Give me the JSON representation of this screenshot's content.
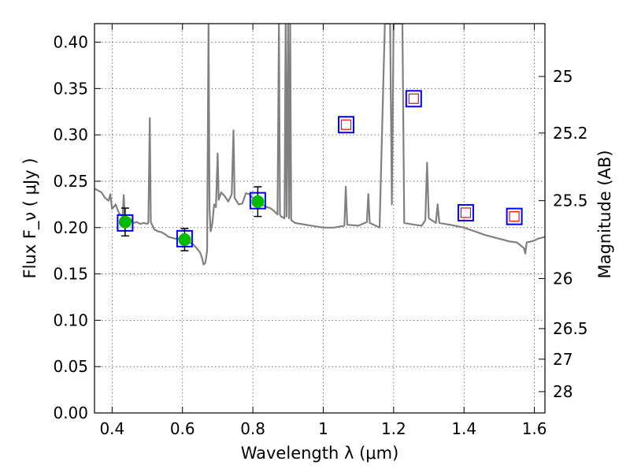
{
  "chart_data": {
    "type": "scatter",
    "title": "",
    "xlabel": "Wavelength  λ (μm)",
    "ylabel": "Flux  F_ν  ( μJy )",
    "ylabel_right": "Magnitude (AB)",
    "xlim": [
      0.35,
      1.63
    ],
    "ylim": [
      0.0,
      0.42
    ],
    "grid": true,
    "legend": "none",
    "x_ticks": [
      0.4,
      0.6,
      0.8,
      1.0,
      1.2,
      1.4,
      1.6
    ],
    "x_tick_labels": [
      "0.4",
      "0.6",
      "0.8",
      "1",
      "1.2",
      "1.4",
      "1.6"
    ],
    "y_ticks": [
      0.0,
      0.05,
      0.1,
      0.15,
      0.2,
      0.25,
      0.3,
      0.35,
      0.4
    ],
    "y_tick_labels": [
      "0.00",
      "0.05",
      "0.10",
      "0.15",
      "0.20",
      "0.25",
      "0.30",
      "0.35",
      "0.40"
    ],
    "right_ticks": [
      {
        "label": "25",
        "flux": 0.363
      },
      {
        "label": "25.2",
        "flux": 0.302
      },
      {
        "label": "25.5",
        "flux": 0.229
      },
      {
        "label": "26",
        "flux": 0.145
      },
      {
        "label": "26.5",
        "flux": 0.091
      },
      {
        "label": "27",
        "flux": 0.058
      },
      {
        "label": "28",
        "flux": 0.023
      }
    ],
    "colors": {
      "spectrum": "#808080",
      "observed_marker": "#00bb00",
      "model_box": "#0000ff",
      "upper_marker": "#ff0000",
      "error_bar": "#000000",
      "grid": "#555555"
    },
    "series": [
      {
        "type": "line",
        "values": [
          [
            0.35,
            0.242
          ],
          [
            0.36,
            0.24
          ],
          [
            0.37,
            0.238
          ],
          [
            0.38,
            0.232
          ],
          [
            0.39,
            0.229
          ],
          [
            0.395,
            0.236
          ],
          [
            0.4,
            0.22
          ],
          [
            0.41,
            0.225
          ],
          [
            0.42,
            0.215
          ],
          [
            0.43,
            0.212
          ],
          [
            0.433,
            0.235
          ],
          [
            0.436,
            0.212
          ],
          [
            0.44,
            0.208
          ],
          [
            0.45,
            0.21
          ],
          [
            0.46,
            0.205
          ],
          [
            0.47,
            0.206
          ],
          [
            0.48,
            0.204
          ],
          [
            0.49,
            0.205
          ],
          [
            0.5,
            0.204
          ],
          [
            0.503,
            0.205
          ],
          [
            0.507,
            0.318
          ],
          [
            0.51,
            0.206
          ],
          [
            0.52,
            0.198
          ],
          [
            0.53,
            0.196
          ],
          [
            0.54,
            0.195
          ],
          [
            0.55,
            0.193
          ],
          [
            0.56,
            0.19
          ],
          [
            0.57,
            0.189
          ],
          [
            0.58,
            0.188
          ],
          [
            0.59,
            0.188
          ],
          [
            0.6,
            0.186
          ],
          [
            0.61,
            0.186
          ],
          [
            0.62,
            0.184
          ],
          [
            0.63,
            0.182
          ],
          [
            0.64,
            0.178
          ],
          [
            0.65,
            0.173
          ],
          [
            0.655,
            0.168
          ],
          [
            0.66,
            0.16
          ],
          [
            0.665,
            0.162
          ],
          [
            0.67,
            0.175
          ],
          [
            0.674,
            0.42
          ],
          [
            0.677,
            0.22
          ],
          [
            0.68,
            0.196
          ],
          [
            0.685,
            0.205
          ],
          [
            0.69,
            0.225
          ],
          [
            0.695,
            0.222
          ],
          [
            0.7,
            0.28
          ],
          [
            0.703,
            0.23
          ],
          [
            0.71,
            0.238
          ],
          [
            0.72,
            0.234
          ],
          [
            0.73,
            0.228
          ],
          [
            0.74,
            0.236
          ],
          [
            0.745,
            0.305
          ],
          [
            0.748,
            0.232
          ],
          [
            0.76,
            0.225
          ],
          [
            0.77,
            0.226
          ],
          [
            0.78,
            0.237
          ],
          [
            0.79,
            0.236
          ],
          [
            0.8,
            0.232
          ],
          [
            0.81,
            0.229
          ],
          [
            0.82,
            0.226
          ],
          [
            0.83,
            0.224
          ],
          [
            0.84,
            0.222
          ],
          [
            0.85,
            0.221
          ],
          [
            0.86,
            0.218
          ],
          [
            0.87,
            0.214
          ],
          [
            0.874,
            0.42
          ],
          [
            0.877,
            0.214
          ],
          [
            0.88,
            0.212
          ],
          [
            0.89,
            0.21
          ],
          [
            0.893,
            0.42
          ],
          [
            0.896,
            0.212
          ],
          [
            0.9,
            0.42
          ],
          [
            0.903,
            0.21
          ],
          [
            0.906,
            0.42
          ],
          [
            0.909,
            0.208
          ],
          [
            0.92,
            0.205
          ],
          [
            0.95,
            0.203
          ],
          [
            1.0,
            0.2
          ],
          [
            1.03,
            0.2
          ],
          [
            1.06,
            0.202
          ],
          [
            1.064,
            0.244
          ],
          [
            1.068,
            0.203
          ],
          [
            1.1,
            0.202
          ],
          [
            1.124,
            0.206
          ],
          [
            1.128,
            0.236
          ],
          [
            1.132,
            0.205
          ],
          [
            1.16,
            0.2
          ],
          [
            1.175,
            0.42
          ],
          [
            1.19,
            0.42
          ],
          [
            1.195,
            0.225
          ],
          [
            1.2,
            0.42
          ],
          [
            1.208,
            0.42
          ],
          [
            1.215,
            0.42
          ],
          [
            1.225,
            0.42
          ],
          [
            1.23,
            0.205
          ],
          [
            1.26,
            0.203
          ],
          [
            1.28,
            0.202
          ],
          [
            1.29,
            0.208
          ],
          [
            1.295,
            0.27
          ],
          [
            1.3,
            0.21
          ],
          [
            1.32,
            0.205
          ],
          [
            1.325,
            0.225
          ],
          [
            1.33,
            0.205
          ],
          [
            1.36,
            0.203
          ],
          [
            1.4,
            0.2
          ],
          [
            1.43,
            0.196
          ],
          [
            1.46,
            0.192
          ],
          [
            1.5,
            0.188
          ],
          [
            1.53,
            0.185
          ],
          [
            1.55,
            0.184
          ],
          [
            1.57,
            0.178
          ],
          [
            1.574,
            0.172
          ],
          [
            1.578,
            0.184
          ],
          [
            1.59,
            0.185
          ],
          [
            1.6,
            0.186
          ],
          [
            1.61,
            0.188
          ],
          [
            1.63,
            0.19
          ]
        ]
      },
      {
        "type": "scatter",
        "marker": "circle-with-errorbar",
        "values": [
          {
            "x": 0.437,
            "y": 0.206,
            "yerr": 0.015
          },
          {
            "x": 0.606,
            "y": 0.187,
            "yerr": 0.012
          },
          {
            "x": 0.814,
            "y": 0.228,
            "yerr": 0.016
          }
        ]
      },
      {
        "type": "scatter",
        "marker": "box",
        "values": [
          {
            "x": 0.437,
            "y": 0.205
          },
          {
            "x": 0.606,
            "y": 0.188
          },
          {
            "x": 0.814,
            "y": 0.229
          },
          {
            "x": 1.065,
            "y": 0.311
          },
          {
            "x": 1.257,
            "y": 0.339
          },
          {
            "x": 1.405,
            "y": 0.216
          },
          {
            "x": 1.543,
            "y": 0.212
          }
        ]
      },
      {
        "type": "scatter",
        "marker": "open-square",
        "values": [
          {
            "x": 1.065,
            "y": 0.311
          },
          {
            "x": 1.257,
            "y": 0.339
          },
          {
            "x": 1.405,
            "y": 0.216
          },
          {
            "x": 1.543,
            "y": 0.212
          }
        ]
      }
    ]
  }
}
